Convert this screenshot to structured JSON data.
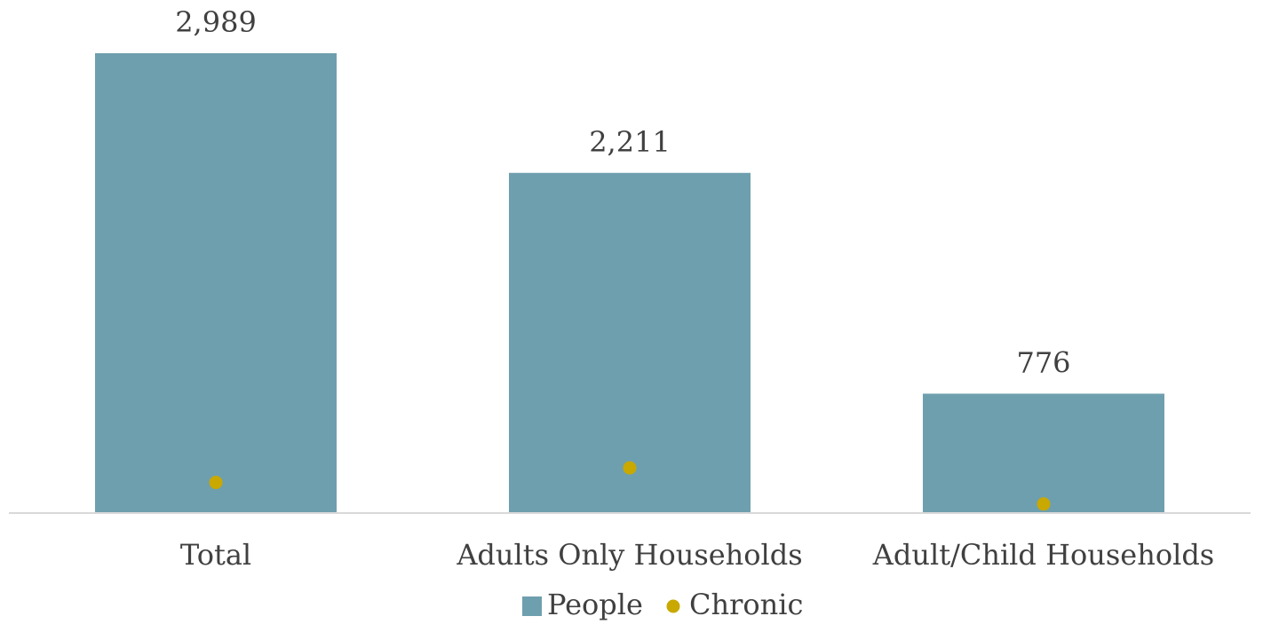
{
  "chart_data": {
    "type": "bar",
    "categories": [
      "Total",
      "Adults Only Households",
      "Adult/Child Households"
    ],
    "series": [
      {
        "name": "People",
        "kind": "bar",
        "color": "#6e9fae",
        "values": [
          2989,
          2211,
          776
        ],
        "value_labels": [
          "2,989",
          "2,211",
          "776"
        ]
      },
      {
        "name": "Chronic",
        "kind": "scatter",
        "color": "#c9a800",
        "values": [
          170,
          265,
          30
        ]
      }
    ],
    "ylim": [
      0,
      3000
    ],
    "grid": false,
    "legend": "bottom",
    "title": "",
    "xlabel": "",
    "ylabel": ""
  }
}
